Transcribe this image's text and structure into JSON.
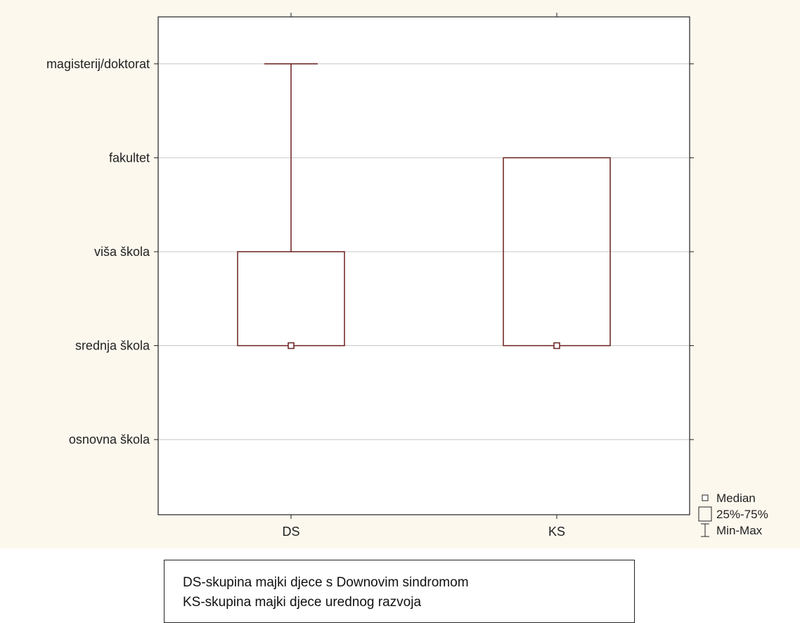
{
  "chart_data": {
    "type": "box",
    "title": "",
    "xlabel": "",
    "ylabel": "",
    "categories": [
      "DS",
      "KS"
    ],
    "y_levels": [
      "osnovna škola",
      "srednja škola",
      "viša škola",
      "fakultet",
      "magisterij/doktorat"
    ],
    "ylim": [
      0.2,
      5.5
    ],
    "grid": true,
    "series": [
      {
        "category": "DS",
        "median": 2,
        "q1": 2,
        "q3": 3,
        "min": 2,
        "max": 5
      },
      {
        "category": "KS",
        "median": 2,
        "q1": 2,
        "q3": 4,
        "min": 2,
        "max": 4
      }
    ],
    "legend": {
      "position": "bottom-right",
      "items": [
        "Median",
        "25%-75%",
        "Min-Max"
      ]
    },
    "colors": {
      "box": "#6b1f1f",
      "grid": "#c8c8c8",
      "background": "#fdf8ee"
    }
  },
  "note": {
    "lines": [
      "DS-skupina majki djece s Downovim sindromom",
      "KS-skupina majki djece urednog razvoja"
    ]
  }
}
